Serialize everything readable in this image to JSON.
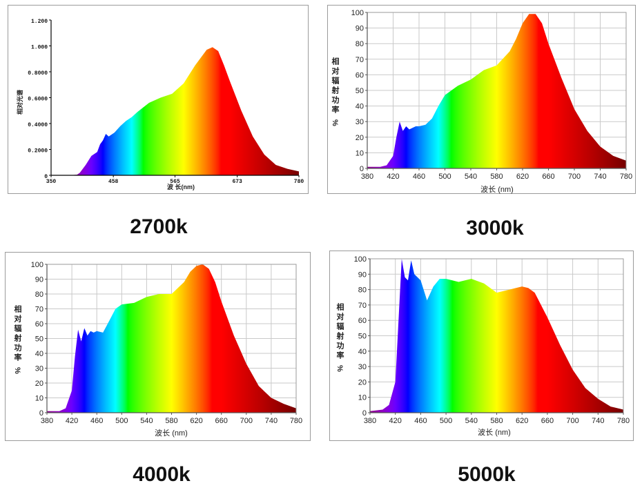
{
  "captions": [
    "2700k",
    "3000k",
    "4000k",
    "5000k"
  ],
  "chart_data": [
    {
      "type": "area",
      "caption": "2700k",
      "xlabel": "波 长(nm)",
      "ylabel": "相对光谱",
      "xlim": [
        350,
        780
      ],
      "ylim": [
        0,
        1.2
      ],
      "xticks": [
        "350",
        "458",
        "565",
        "673",
        "780"
      ],
      "yticks": [
        "0",
        "0.2000",
        "0.4000",
        "0.6000",
        "0.8000",
        "1.000",
        "1.200"
      ],
      "grid": false,
      "x": [
        350,
        380,
        395,
        400,
        410,
        420,
        430,
        435,
        440,
        445,
        450,
        460,
        470,
        480,
        490,
        500,
        520,
        540,
        560,
        580,
        600,
        620,
        630,
        640,
        650,
        660,
        680,
        700,
        720,
        740,
        760,
        780
      ],
      "y": [
        0,
        0,
        0.005,
        0.02,
        0.08,
        0.15,
        0.18,
        0.24,
        0.27,
        0.32,
        0.3,
        0.33,
        0.38,
        0.42,
        0.45,
        0.49,
        0.56,
        0.6,
        0.63,
        0.71,
        0.85,
        0.97,
        0.99,
        0.96,
        0.85,
        0.73,
        0.5,
        0.3,
        0.16,
        0.08,
        0.05,
        0.03
      ]
    },
    {
      "type": "area",
      "caption": "3000k",
      "xlabel": "波长 (nm)",
      "ylabel": "相对辐射功率 %",
      "xlim": [
        380,
        780
      ],
      "ylim": [
        0,
        100
      ],
      "xticks": [
        "380",
        "420",
        "460",
        "500",
        "540",
        "580",
        "620",
        "660",
        "700",
        "740",
        "780"
      ],
      "yticks": [
        "0",
        "10",
        "20",
        "30",
        "40",
        "50",
        "60",
        "70",
        "80",
        "90",
        "100"
      ],
      "grid": true,
      "x": [
        380,
        400,
        410,
        420,
        425,
        430,
        435,
        440,
        445,
        450,
        455,
        460,
        470,
        480,
        490,
        500,
        510,
        520,
        540,
        560,
        580,
        600,
        610,
        620,
        630,
        640,
        650,
        660,
        680,
        700,
        720,
        740,
        760,
        780
      ],
      "y": [
        1,
        1,
        2,
        8,
        20,
        30,
        24,
        27,
        25,
        26,
        27,
        27,
        28,
        32,
        40,
        47,
        50,
        53,
        57,
        63,
        66,
        75,
        83,
        93,
        99,
        99,
        93,
        80,
        58,
        38,
        24,
        14,
        8,
        5
      ]
    },
    {
      "type": "area",
      "caption": "4000k",
      "xlabel": "波长 (nm)",
      "ylabel": "相对辐射功率 %",
      "xlim": [
        380,
        780
      ],
      "ylim": [
        0,
        100
      ],
      "xticks": [
        "380",
        "420",
        "460",
        "500",
        "540",
        "580",
        "620",
        "660",
        "700",
        "740",
        "780"
      ],
      "yticks": [
        "0",
        "10",
        "20",
        "30",
        "40",
        "50",
        "60",
        "70",
        "80",
        "90",
        "100"
      ],
      "grid": true,
      "x": [
        380,
        400,
        410,
        420,
        425,
        430,
        435,
        440,
        445,
        450,
        455,
        460,
        470,
        480,
        490,
        500,
        520,
        540,
        560,
        580,
        600,
        610,
        620,
        630,
        640,
        650,
        660,
        680,
        700,
        720,
        740,
        760,
        780
      ],
      "y": [
        1,
        1,
        3,
        15,
        38,
        56,
        48,
        57,
        52,
        55,
        54,
        55,
        54,
        62,
        70,
        73,
        74,
        78,
        80,
        80,
        88,
        95,
        99,
        100,
        97,
        88,
        75,
        52,
        33,
        18,
        10,
        6,
        3
      ]
    },
    {
      "type": "area",
      "caption": "5000k",
      "xlabel": "波长 (nm)",
      "ylabel": "相对辐射功率 %",
      "xlim": [
        380,
        780
      ],
      "ylim": [
        0,
        100
      ],
      "xticks": [
        "380",
        "420",
        "460",
        "500",
        "540",
        "580",
        "620",
        "660",
        "700",
        "740",
        "780"
      ],
      "yticks": [
        "0",
        "10",
        "20",
        "30",
        "40",
        "50",
        "60",
        "70",
        "80",
        "90",
        "100"
      ],
      "grid": true,
      "x": [
        380,
        400,
        410,
        420,
        425,
        430,
        435,
        440,
        445,
        450,
        455,
        460,
        470,
        480,
        490,
        500,
        520,
        540,
        560,
        580,
        600,
        610,
        620,
        630,
        640,
        650,
        660,
        680,
        700,
        720,
        740,
        760,
        780
      ],
      "y": [
        1,
        2,
        5,
        20,
        60,
        100,
        88,
        86,
        99,
        90,
        88,
        86,
        73,
        82,
        87,
        87,
        85,
        87,
        84,
        78,
        80,
        81,
        82,
        81,
        78,
        70,
        62,
        44,
        28,
        16,
        9,
        4,
        2
      ]
    }
  ]
}
